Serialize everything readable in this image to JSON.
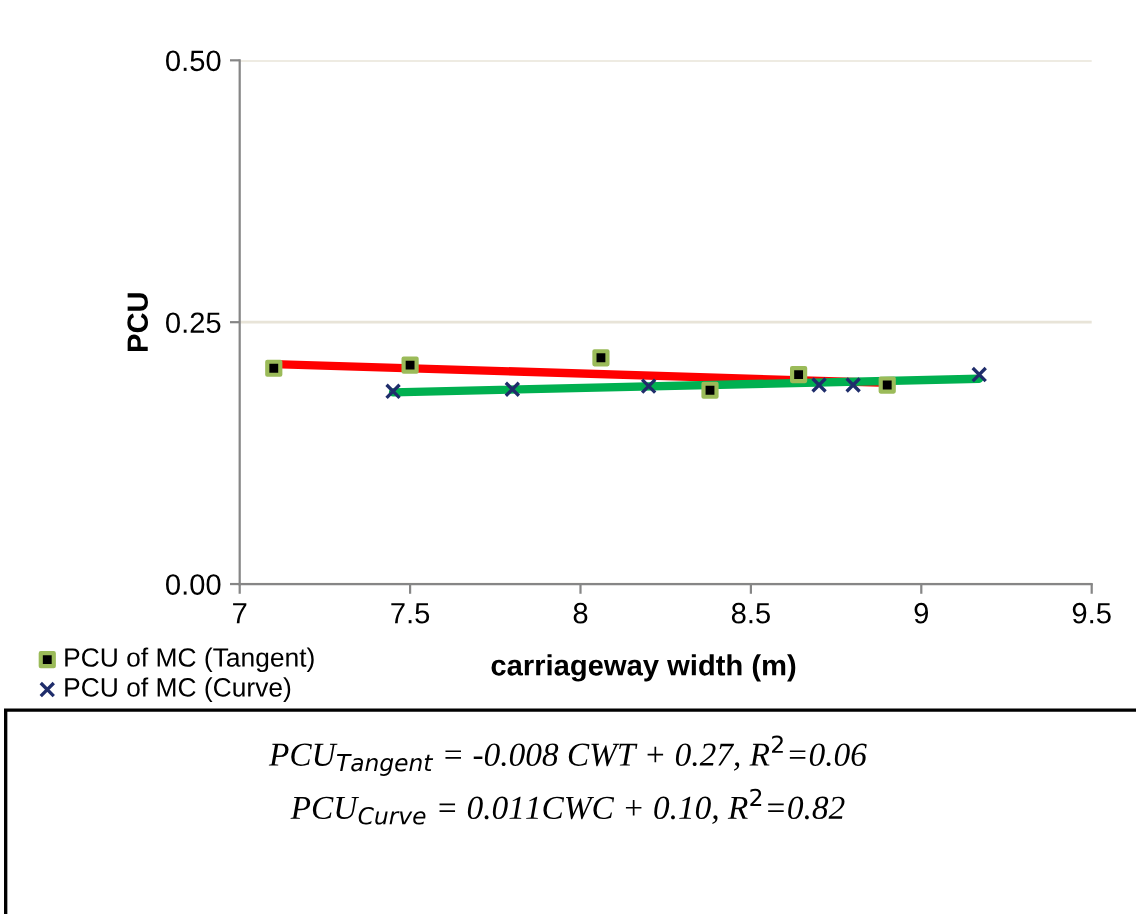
{
  "chart_data": {
    "type": "scatter",
    "xlabel": "carriageway width (m)",
    "ylabel": "PCU",
    "xlim": [
      7,
      9.5
    ],
    "xticks": [
      7,
      7.5,
      8,
      8.5,
      9,
      9.5
    ],
    "ylim": [
      0,
      0.5
    ],
    "yticks": [
      {
        "value": 0,
        "label": "0.00"
      },
      {
        "value": 0.25,
        "label": "0.25"
      },
      {
        "value": 0.5,
        "label": "0.50"
      }
    ],
    "grid": "y",
    "legend": "bottom left",
    "series": [
      {
        "name": "PCU of MC (Tangent)",
        "type": "scatter",
        "marker": "square",
        "color": "#000000",
        "x": [
          7.1,
          7.5,
          8.06,
          8.38,
          8.64,
          8.9
        ],
        "values": [
          0.206,
          0.209,
          0.216,
          0.185,
          0.2,
          0.19
        ]
      },
      {
        "name": "PCU of MC (Curve)",
        "type": "scatter",
        "marker": "cross",
        "color": "#1f2d6b",
        "x": [
          7.45,
          7.8,
          8.2,
          8.7,
          8.8,
          9.17
        ],
        "values": [
          0.184,
          0.186,
          0.189,
          0.19,
          0.19,
          0.2
        ]
      },
      {
        "type": "line",
        "color": "#ff0000",
        "x": [
          7.1,
          8.9
        ],
        "values": [
          0.21,
          0.192
        ]
      },
      {
        "type": "line",
        "color": "#00b050",
        "x": [
          7.45,
          9.17
        ],
        "values": [
          0.183,
          0.196
        ]
      }
    ],
    "annotations": [
      "PCU$_{Tangent}$ = -0.008 CWT + 0.27, R$^{2}$=0.06",
      "PCU$_{Curve}$ = 0.011CWC + 0.10, R$^{2}$=0.82"
    ]
  }
}
